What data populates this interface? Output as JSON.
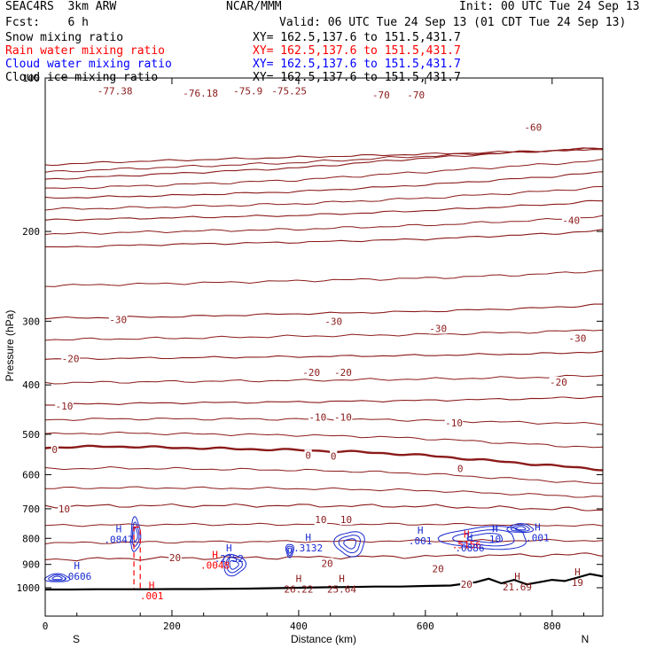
{
  "header": {
    "model": "SEAC4RS  3km ARW",
    "org": "NCAR/MMM",
    "init": "Init: 00 UTC Tue 24 Sep 13",
    "fcst": "Fcst:    6 h",
    "valid": "Valid: 06 UTC Tue 24 Sep 13 (01 CDT Tue 24 Sep 13)",
    "fields": [
      {
        "name": "Snow mixing ratio",
        "xy": "XY= 162.5,137.6 to 151.5,431.7",
        "color": "#000000"
      },
      {
        "name": "Rain water mixing ratio",
        "xy": "XY= 162.5,137.6 to 151.5,431.7",
        "color": "#ff0000"
      },
      {
        "name": "Cloud water mixing ratio",
        "xy": "XY= 162.5,137.6 to 151.5,431.7",
        "color": "#0000ff"
      },
      {
        "name": "Cloud ice mixing ratio",
        "xy": "XY= 162.5,137.6 to 151.5,431.7",
        "color": "#000000"
      }
    ]
  },
  "colors": {
    "temperature": "#8b1a1a",
    "zero_isotherm": "#8b1a1a",
    "cloud_water": "#1a2ad0",
    "rain_water": "#ff0000",
    "terrain": "#000000"
  },
  "chart_data": {
    "type": "cross-section contour",
    "ylabel": "Pressure (hPa)",
    "xlabel": "Distance (km)",
    "xlim": [
      0,
      880
    ],
    "ylim": [
      1050,
      100
    ],
    "yscale": "log",
    "x_ticks": [
      0,
      200,
      400,
      600,
      800
    ],
    "x_tick_labels": [
      "0",
      "200",
      "400",
      "600",
      "800"
    ],
    "y_ticks": [
      100,
      200,
      300,
      400,
      500,
      600,
      700,
      800,
      900,
      1000
    ],
    "y_tick_labels": [
      "100",
      "200",
      "300",
      "400",
      "500",
      "600",
      "700",
      "800",
      "900",
      "1000"
    ],
    "endpoints": {
      "left": "S",
      "right": "N"
    },
    "terrain": {
      "x": [
        0,
        40,
        80,
        120,
        160,
        200,
        240,
        280,
        320,
        360,
        400,
        440,
        480,
        520,
        560,
        600,
        640,
        680,
        700,
        720,
        740,
        760,
        780,
        800,
        820,
        840,
        860,
        880
      ],
      "p": [
        1008,
        1008,
        1007,
        1007,
        1007,
        1006,
        1006,
        1005,
        1004,
        1002,
        1000,
        998,
        997,
        995,
        995,
        992,
        990,
        975,
        960,
        980,
        965,
        985,
        975,
        965,
        970,
        955,
        940,
        950
      ]
    },
    "temperature_contours": [
      {
        "level": -77,
        "x": [
          0,
          120,
          300,
          500,
          700,
          880
        ],
        "p": [
          148,
          146,
          144,
          142,
          140,
          138
        ]
      },
      {
        "level": -70,
        "x": [
          0,
          200,
          400,
          550,
          700,
          880
        ],
        "p": [
          158,
          154,
          150,
          145,
          141,
          137
        ]
      },
      {
        "level": -60,
        "x": [
          0,
          200,
          400,
          600,
          800,
          880
        ],
        "p": [
          172,
          170,
          167,
          162,
          156,
          153
        ]
      },
      {
        "level": -50,
        "x": [
          0,
          200,
          400,
          600,
          800,
          880
        ],
        "p": [
          190,
          188,
          186,
          182,
          177,
          174
        ]
      },
      {
        "level": -40,
        "x": [
          0,
          200,
          400,
          600,
          800,
          880
        ],
        "p": [
          215,
          212,
          210,
          207,
          202,
          199
        ]
      },
      {
        "level": -30,
        "x": [
          0,
          200,
          400,
          600,
          800,
          880
        ],
        "p": [
          296,
          294,
          290,
          287,
          282,
          278
        ]
      },
      {
        "level": -20,
        "x": [
          0,
          200,
          400,
          600,
          800,
          880
        ],
        "p": [
          356,
          354,
          352,
          350,
          347,
          344
        ]
      },
      {
        "level": -10,
        "x": [
          0,
          200,
          400,
          600,
          800,
          880
        ],
        "p": [
          437,
          434,
          432,
          429,
          425,
          422
        ]
      },
      {
        "level": 0,
        "x": [
          0,
          100,
          200,
          300,
          400,
          500,
          600,
          700,
          800,
          880
        ],
        "p": [
          531,
          528,
          531,
          534,
          537,
          542,
          550,
          563,
          576,
          586
        ]
      },
      {
        "level": 10,
        "x": [
          0,
          200,
          400,
          600,
          800,
          880
        ],
        "p": [
          692,
          690,
          690,
          692,
          700,
          704
        ]
      },
      {
        "level": 20,
        "x": [
          0,
          200,
          400,
          600,
          800,
          880
        ],
        "p": [
          880,
          875,
          872,
          868,
          862,
          860
        ]
      }
    ],
    "temperature_labels": [
      {
        "x": 110,
        "p": 106,
        "text": "-77.38"
      },
      {
        "x": 245,
        "p": 107,
        "text": "-76.18"
      },
      {
        "x": 320,
        "p": 106,
        "text": "-75.9"
      },
      {
        "x": 385,
        "p": 106,
        "text": "-75.25"
      },
      {
        "x": 530,
        "p": 108,
        "text": "-70"
      },
      {
        "x": 585,
        "p": 108,
        "text": "-70"
      },
      {
        "x": 770,
        "p": 125,
        "text": "-60"
      },
      {
        "x": 830,
        "p": 190,
        "text": "-40"
      },
      {
        "x": 115,
        "p": 298,
        "text": "-30"
      },
      {
        "x": 455,
        "p": 300,
        "text": "-30"
      },
      {
        "x": 620,
        "p": 310,
        "text": "-30"
      },
      {
        "x": 840,
        "p": 324,
        "text": "-30"
      },
      {
        "x": 40,
        "p": 355,
        "text": "-20"
      },
      {
        "x": 420,
        "p": 378,
        "text": "-20"
      },
      {
        "x": 470,
        "p": 378,
        "text": "-20"
      },
      {
        "x": 810,
        "p": 395,
        "text": "-20"
      },
      {
        "x": 30,
        "p": 440,
        "text": "-10"
      },
      {
        "x": 430,
        "p": 463,
        "text": "-10"
      },
      {
        "x": 470,
        "p": 463,
        "text": "-10"
      },
      {
        "x": 645,
        "p": 475,
        "text": "-10"
      },
      {
        "x": 15,
        "p": 535,
        "text": "0"
      },
      {
        "x": 415,
        "p": 549,
        "text": "0"
      },
      {
        "x": 455,
        "p": 552,
        "text": "0"
      },
      {
        "x": 655,
        "p": 583,
        "text": "0"
      },
      {
        "x": 30,
        "p": 700,
        "text": "10"
      },
      {
        "x": 435,
        "p": 735,
        "text": "10"
      },
      {
        "x": 475,
        "p": 735,
        "text": "10"
      },
      {
        "x": 205,
        "p": 873,
        "text": "20"
      },
      {
        "x": 445,
        "p": 895,
        "text": "20"
      },
      {
        "x": 620,
        "p": 918,
        "text": "20"
      },
      {
        "x": 665,
        "p": 985,
        "text": "20"
      }
    ],
    "h_markers": [
      {
        "x": 116,
        "p": 778,
        "label": ".0847",
        "color": "blue"
      },
      {
        "x": 50,
        "p": 920,
        "label": ".0606",
        "color": "blue"
      },
      {
        "x": 290,
        "p": 848,
        "label": ".2752",
        "color": "blue"
      },
      {
        "x": 268,
        "p": 875,
        "label": ".0048",
        "color": "red"
      },
      {
        "x": 415,
        "p": 808,
        "label": ".3132",
        "color": "blue"
      },
      {
        "x": 665,
        "p": 798,
        "label": ".5156",
        "color": "red"
      },
      {
        "x": 670,
        "p": 808,
        "label": ".0886",
        "color": "blue"
      },
      {
        "x": 710,
        "p": 777,
        "label": "10",
        "color": "blue"
      },
      {
        "x": 777,
        "p": 773,
        "label": ".001",
        "color": "blue"
      },
      {
        "x": 592,
        "p": 783,
        "label": ".001",
        "color": "blue"
      },
      {
        "x": 168,
        "p": 1005,
        "label": ".001",
        "color": "red"
      },
      {
        "x": 400,
        "p": 975,
        "label": "26.22",
        "color": "maroon"
      },
      {
        "x": 468,
        "p": 975,
        "label": "25.64",
        "color": "maroon"
      },
      {
        "x": 745,
        "p": 965,
        "label": "21.69",
        "color": "maroon"
      },
      {
        "x": 840,
        "p": 945,
        "label": "19",
        "color": "maroon"
      }
    ],
    "cloud_water_regions": [
      {
        "x0": 0,
        "x1": 38,
        "p0": 940,
        "p1": 975
      },
      {
        "x0": 135,
        "x1": 150,
        "p0": 730,
        "p1": 850
      },
      {
        "x0": 280,
        "x1": 315,
        "p0": 860,
        "p1": 945
      },
      {
        "x0": 380,
        "x1": 392,
        "p0": 820,
        "p1": 870
      },
      {
        "x0": 458,
        "x1": 505,
        "p0": 775,
        "p1": 865
      },
      {
        "x0": 628,
        "x1": 765,
        "p0": 760,
        "p1": 840
      },
      {
        "x0": 730,
        "x1": 770,
        "p0": 750,
        "p1": 780
      }
    ],
    "rain_regions": [
      {
        "x0": 140,
        "x1": 150,
        "p0": 760,
        "p1": 1007
      }
    ]
  }
}
